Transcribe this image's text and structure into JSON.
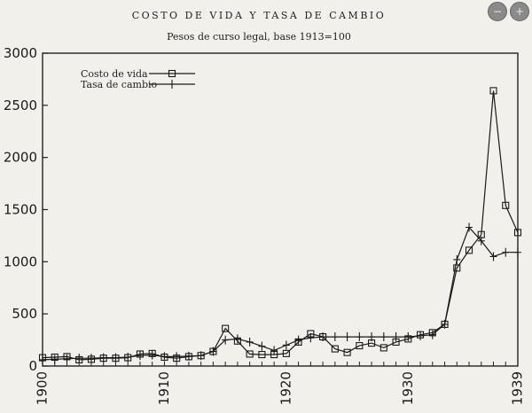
{
  "buttons": {
    "zoom_out_icon": "zoom-out-icon",
    "zoom_in_icon": "zoom-in-icon",
    "zoom_out_glyph": "−",
    "zoom_in_glyph": "+"
  },
  "chart_data": {
    "type": "line",
    "title": "COSTO DE VIDA Y TASA DE CAMBIO",
    "subtitle": "Pesos de curso legal, base 1913=100",
    "xlim": [
      1900,
      1939
    ],
    "ylim": [
      0,
      3000
    ],
    "x_ticks": [
      1900,
      1910,
      1920,
      1930,
      1939
    ],
    "y_ticks": [
      0,
      500,
      1000,
      1500,
      2000,
      2500,
      3000
    ],
    "legend_position": "top-left",
    "series": [
      {
        "name": "Costo de vida",
        "marker": "square",
        "x": [
          1900,
          1901,
          1902,
          1903,
          1904,
          1905,
          1906,
          1907,
          1908,
          1909,
          1910,
          1911,
          1912,
          1913,
          1914,
          1915,
          1916,
          1917,
          1918,
          1919,
          1920,
          1921,
          1922,
          1923,
          1924,
          1925,
          1926,
          1927,
          1928,
          1929,
          1930,
          1931,
          1932,
          1933,
          1934,
          1935,
          1936,
          1937,
          1938,
          1939
        ],
        "y": [
          80,
          85,
          90,
          60,
          65,
          75,
          75,
          80,
          115,
          120,
          85,
          75,
          90,
          100,
          140,
          360,
          240,
          115,
          110,
          110,
          120,
          230,
          310,
          280,
          165,
          130,
          195,
          220,
          175,
          230,
          260,
          300,
          320,
          400,
          940,
          1110,
          1260,
          2640,
          1540,
          1280
        ]
      },
      {
        "name": "Tasa de cambio",
        "marker": "plus",
        "x": [
          1900,
          1901,
          1902,
          1903,
          1904,
          1905,
          1906,
          1907,
          1908,
          1909,
          1910,
          1911,
          1912,
          1913,
          1914,
          1915,
          1916,
          1917,
          1918,
          1919,
          1920,
          1921,
          1922,
          1923,
          1924,
          1925,
          1926,
          1927,
          1928,
          1929,
          1930,
          1931,
          1932,
          1933,
          1934,
          1935,
          1936,
          1937,
          1938,
          1939
        ],
        "y": [
          60,
          65,
          70,
          75,
          75,
          80,
          80,
          85,
          100,
          105,
          90,
          90,
          95,
          100,
          140,
          250,
          260,
          230,
          190,
          150,
          200,
          250,
          270,
          280,
          280,
          280,
          280,
          280,
          280,
          280,
          280,
          290,
          300,
          400,
          1020,
          1330,
          1200,
          1050,
          1090,
          1090
        ]
      }
    ]
  }
}
